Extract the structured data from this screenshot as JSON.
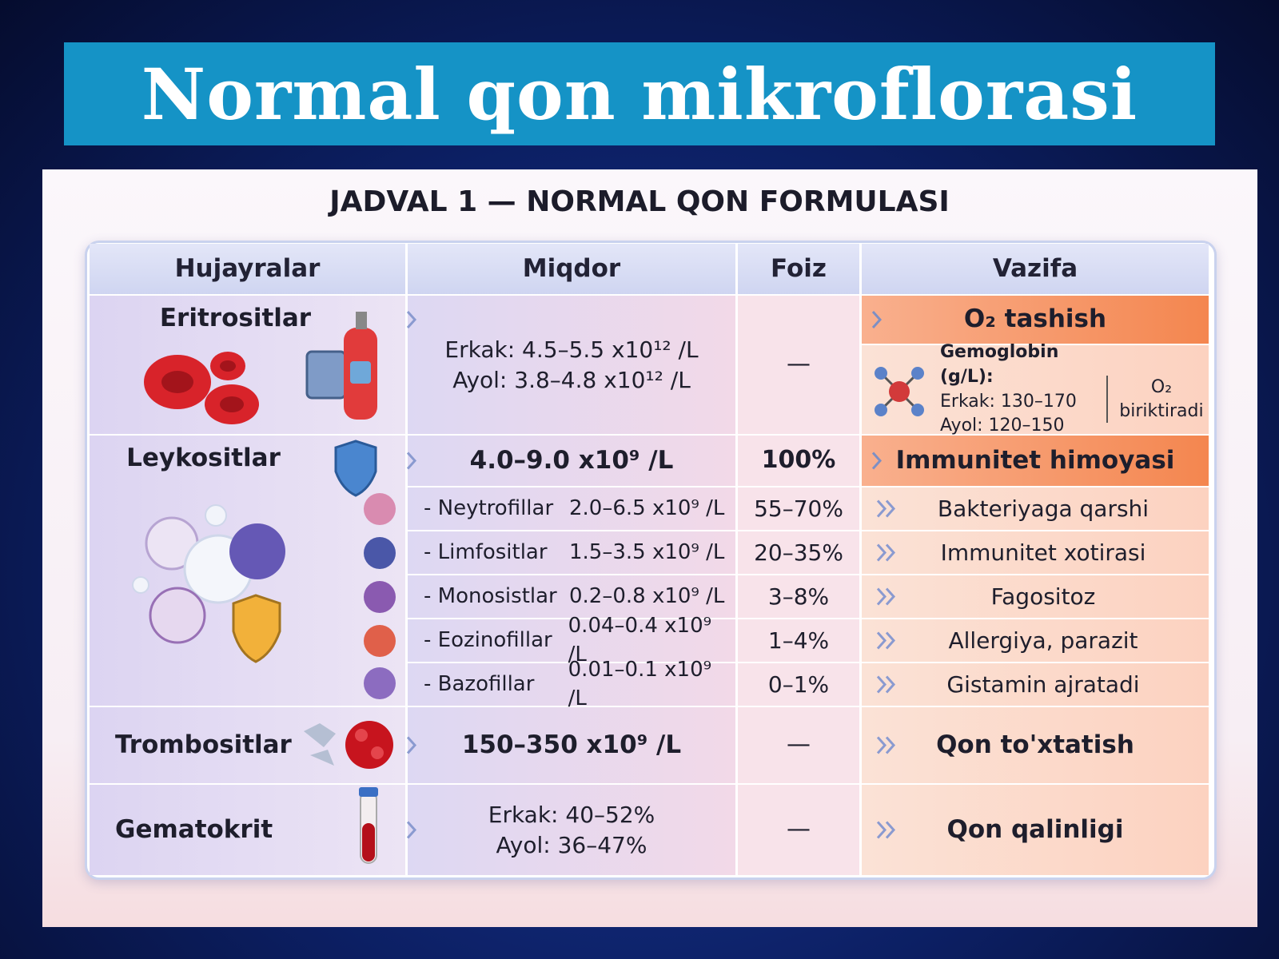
{
  "header": {
    "title": "Normal qon mikroflorasi"
  },
  "table": {
    "title": "JADVAL 1 — NORMAL QON FORMULASI",
    "columns": [
      "Hujayralar",
      "Miqdor",
      "Foiz",
      "Vazifa"
    ],
    "rows": [
      {
        "name": "Eritrositlar",
        "amount": [
          "Erkak: 4.5–5.5 x10¹² /L",
          "Ayol: 3.8–4.8 x10¹² /L"
        ],
        "percent": "—",
        "function": "O₂ tashish",
        "hemoglobin": {
          "label": "Gemoglobin (g/L):",
          "lines": [
            "Erkak: 130–170",
            "Ayol: 120–150"
          ],
          "note": "O₂ biriktiradi"
        }
      },
      {
        "name": "Leykositlar",
        "amount": [
          "4.0–9.0 x10⁹ /L"
        ],
        "percent": "100%",
        "function": "Immunitet himoyasi",
        "subrows": [
          {
            "name": "- Neytrofillar",
            "amount": "2.0–6.5 x10⁹ /L",
            "percent": "55–70%",
            "function": "Bakteriyaga qarshi"
          },
          {
            "name": "- Limfositlar",
            "amount": "1.5–3.5 x10⁹ /L",
            "percent": "20–35%",
            "function": "Immunitet xotirasi"
          },
          {
            "name": "- Monosistlar",
            "amount": "0.2–0.8 x10⁹ /L",
            "percent": "3–8%",
            "function": "Fagositoz"
          },
          {
            "name": "- Eozinofillar",
            "amount": "0.04–0.4 x10⁹ /L",
            "percent": "1–4%",
            "function": "Allergiya, parazit"
          },
          {
            "name": "- Bazofillar",
            "amount": "0.01–0.1 x10⁹ /L",
            "percent": "0–1%",
            "function": "Gistamin ajratadi"
          }
        ]
      },
      {
        "name": "Trombositlar",
        "amount": [
          "150–350 x10⁹ /L"
        ],
        "percent": "—",
        "function": "Qon to'xtatish"
      },
      {
        "name": "Gematokrit",
        "amount": [
          "Erkak: 40–52%",
          "Ayol: 36–47%"
        ],
        "percent": "—",
        "function": "Qon qalinligi"
      }
    ]
  }
}
